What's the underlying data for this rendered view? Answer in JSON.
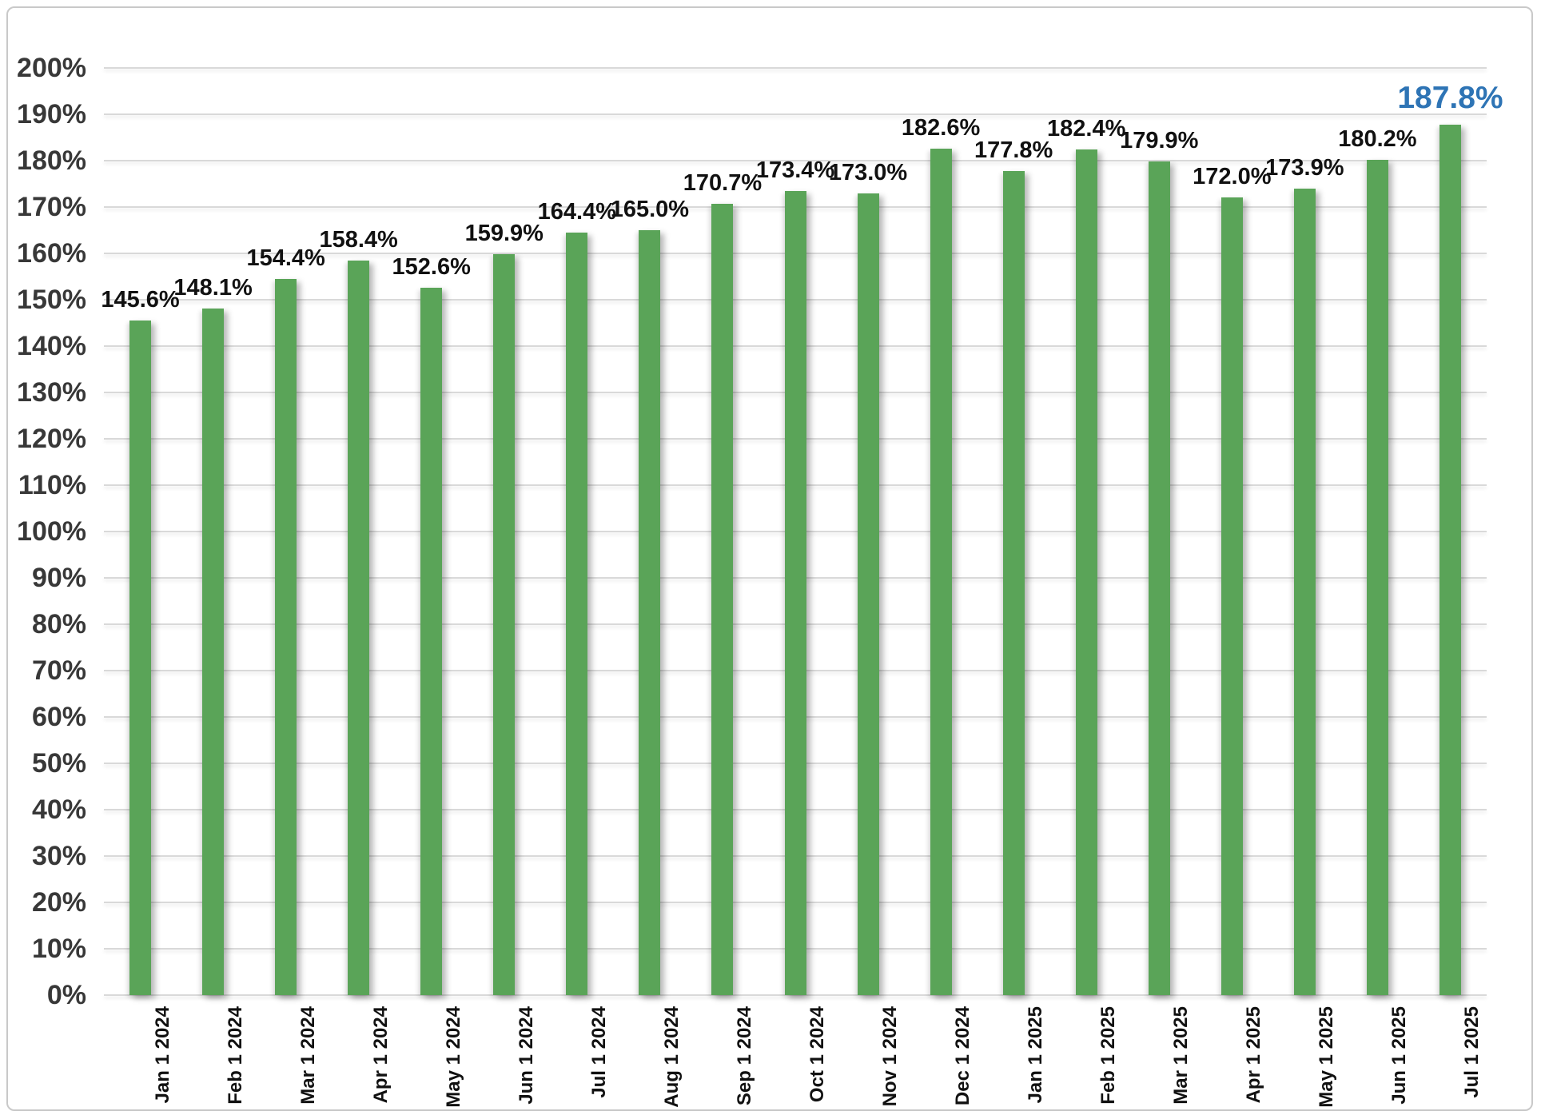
{
  "chart_data": {
    "type": "bar",
    "title": "",
    "xlabel": "",
    "ylabel": "",
    "categories": [
      "Jan 1 2024",
      "Feb 1 2024",
      "Mar 1 2024",
      "Apr 1 2024",
      "May 1 2024",
      "Jun 1 2024",
      "Jul 1 2024",
      "Aug 1 2024",
      "Sep 1 2024",
      "Oct 1 2024",
      "Nov 1 2024",
      "Dec 1 2024",
      "Jan 1 2025",
      "Feb 1 2025",
      "Mar 1 2025",
      "Apr 1 2025",
      "May 1 2025",
      "Jun 1 2025",
      "Jul 1 2025"
    ],
    "values": [
      145.6,
      148.1,
      154.4,
      158.4,
      152.6,
      159.9,
      164.4,
      165.0,
      170.7,
      173.4,
      173.0,
      182.6,
      177.8,
      182.4,
      179.9,
      172.0,
      173.9,
      180.2,
      187.8
    ],
    "data_labels": [
      "145.6%",
      "148.1%",
      "154.4%",
      "158.4%",
      "152.6%",
      "159.9%",
      "164.4%",
      "165.0%",
      "170.7%",
      "173.4%",
      "173.0%",
      "182.6%",
      "177.8%",
      "182.4%",
      "179.9%",
      "172.0%",
      "173.9%",
      "180.2%",
      "187.8%"
    ],
    "highlight_last_label": true,
    "ylim": [
      0,
      200
    ],
    "ytick_step": 10,
    "ytick_labels": [
      "0%",
      "10%",
      "20%",
      "30%",
      "40%",
      "50%",
      "60%",
      "70%",
      "80%",
      "90%",
      "100%",
      "110%",
      "120%",
      "130%",
      "140%",
      "150%",
      "160%",
      "170%",
      "180%",
      "190%",
      "200%"
    ],
    "grid": true,
    "legend_position": "none",
    "colors": {
      "bar": "#5aa458",
      "data_label": "#111111",
      "highlight_label": "#2e74b5",
      "axis_label": "#383838",
      "gridline": "#d9d9d9",
      "frame_border": "#c9c9c9",
      "background": "#ffffff"
    }
  }
}
